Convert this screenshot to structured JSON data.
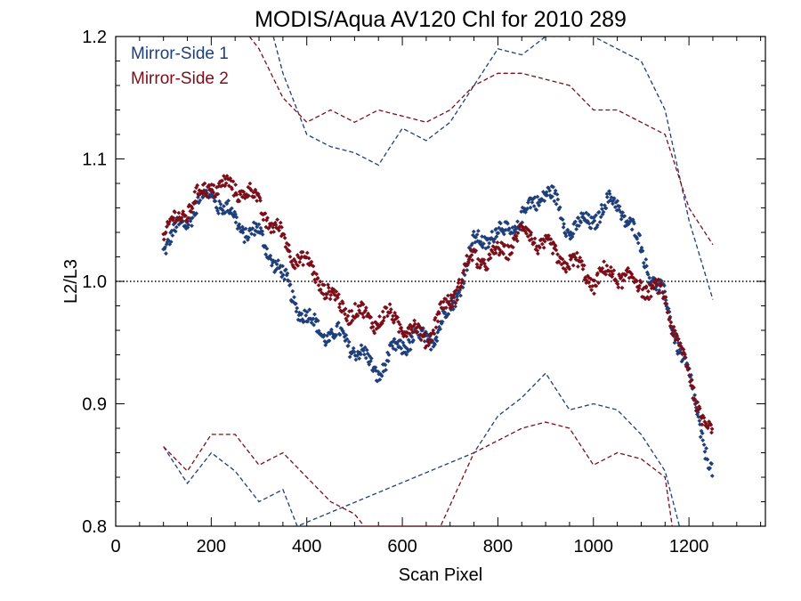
{
  "chart_data": {
    "type": "scatter",
    "title": "MODIS/Aqua AV120 Chl for 2010 289",
    "xlabel": "Scan Pixel",
    "ylabel": "L2/L3",
    "xlim": [
      0,
      1360
    ],
    "ylim": [
      0.8,
      1.2
    ],
    "x_ticks": [
      0,
      200,
      400,
      600,
      800,
      1000,
      1200
    ],
    "x_tick_labels": [
      "0",
      "200",
      "400",
      "600",
      "800",
      "1000",
      "1200"
    ],
    "y_ticks": [
      0.8,
      0.9,
      1.0,
      1.1,
      1.2
    ],
    "y_tick_labels": [
      "0.8",
      "0.9",
      "1.0",
      "1.1",
      "1.2"
    ],
    "reference_line": {
      "y": 1.0,
      "style": "dotted"
    },
    "legend_position": "top-left",
    "series": [
      {
        "name": "Mirror-Side 1",
        "color": "#1f3f7a",
        "marker": "diamond",
        "mean": {
          "x": [
            100,
            150,
            200,
            250,
            300,
            350,
            400,
            450,
            500,
            550,
            600,
            650,
            700,
            750,
            800,
            850,
            900,
            950,
            1000,
            1050,
            1100,
            1150,
            1200,
            1250
          ],
          "y": [
            1.035,
            1.05,
            1.07,
            1.055,
            1.035,
            1.0,
            0.975,
            0.952,
            0.945,
            0.932,
            0.945,
            0.952,
            0.98,
            1.025,
            1.04,
            1.055,
            1.07,
            1.045,
            1.055,
            1.06,
            1.03,
            0.985,
            0.915,
            0.845
          ]
        },
        "upper_dashed": {
          "x": [
            330,
            350,
            400,
            450,
            500,
            550,
            600,
            650,
            700,
            750,
            800,
            850,
            900,
            950,
            1000,
            1050,
            1100,
            1150,
            1200,
            1250
          ],
          "y": [
            1.2,
            1.17,
            1.12,
            1.11,
            1.105,
            1.095,
            1.125,
            1.115,
            1.13,
            1.16,
            1.19,
            1.185,
            1.2,
            1.2,
            1.2,
            1.19,
            1.18,
            1.14,
            1.05,
            0.985
          ]
        },
        "lower_dashed": {
          "x": [
            100,
            150,
            200,
            250,
            300,
            350,
            380,
            750,
            800,
            850,
            900,
            950,
            1000,
            1050,
            1100,
            1150,
            1180
          ],
          "y": [
            0.865,
            0.835,
            0.86,
            0.845,
            0.82,
            0.83,
            0.8,
            0.86,
            0.89,
            0.905,
            0.925,
            0.895,
            0.9,
            0.895,
            0.875,
            0.845,
            0.8
          ]
        }
      },
      {
        "name": "Mirror-Side 2",
        "color": "#7a0f1a",
        "marker": "diamond",
        "mean": {
          "x": [
            100,
            150,
            200,
            250,
            300,
            350,
            400,
            450,
            500,
            550,
            600,
            650,
            700,
            750,
            800,
            850,
            900,
            950,
            1000,
            1050,
            1100,
            1150,
            1200,
            1250
          ],
          "y": [
            1.035,
            1.055,
            1.085,
            1.075,
            1.06,
            1.04,
            1.01,
            0.985,
            0.98,
            0.965,
            0.965,
            0.96,
            0.98,
            1.02,
            1.025,
            1.035,
            1.03,
            1.02,
            0.995,
            1.01,
            1.0,
            0.98,
            0.925,
            0.875
          ]
        },
        "upper_dashed": {
          "x": [
            280,
            300,
            350,
            400,
            450,
            500,
            550,
            600,
            650,
            700,
            750,
            800,
            850,
            900,
            950,
            1000,
            1050,
            1100,
            1150,
            1200,
            1250
          ],
          "y": [
            1.2,
            1.19,
            1.15,
            1.13,
            1.14,
            1.13,
            1.14,
            1.135,
            1.13,
            1.14,
            1.16,
            1.17,
            1.17,
            1.165,
            1.16,
            1.14,
            1.14,
            1.13,
            1.12,
            1.06,
            1.03
          ]
        },
        "lower_dashed": {
          "x": [
            100,
            150,
            200,
            250,
            300,
            350,
            400,
            450,
            500,
            520,
            680,
            750,
            800,
            850,
            900,
            950,
            1000,
            1050,
            1100,
            1150,
            1165
          ],
          "y": [
            0.865,
            0.845,
            0.875,
            0.875,
            0.85,
            0.86,
            0.84,
            0.82,
            0.81,
            0.8,
            0.8,
            0.86,
            0.87,
            0.88,
            0.885,
            0.88,
            0.85,
            0.86,
            0.855,
            0.84,
            0.8
          ]
        }
      }
    ]
  }
}
